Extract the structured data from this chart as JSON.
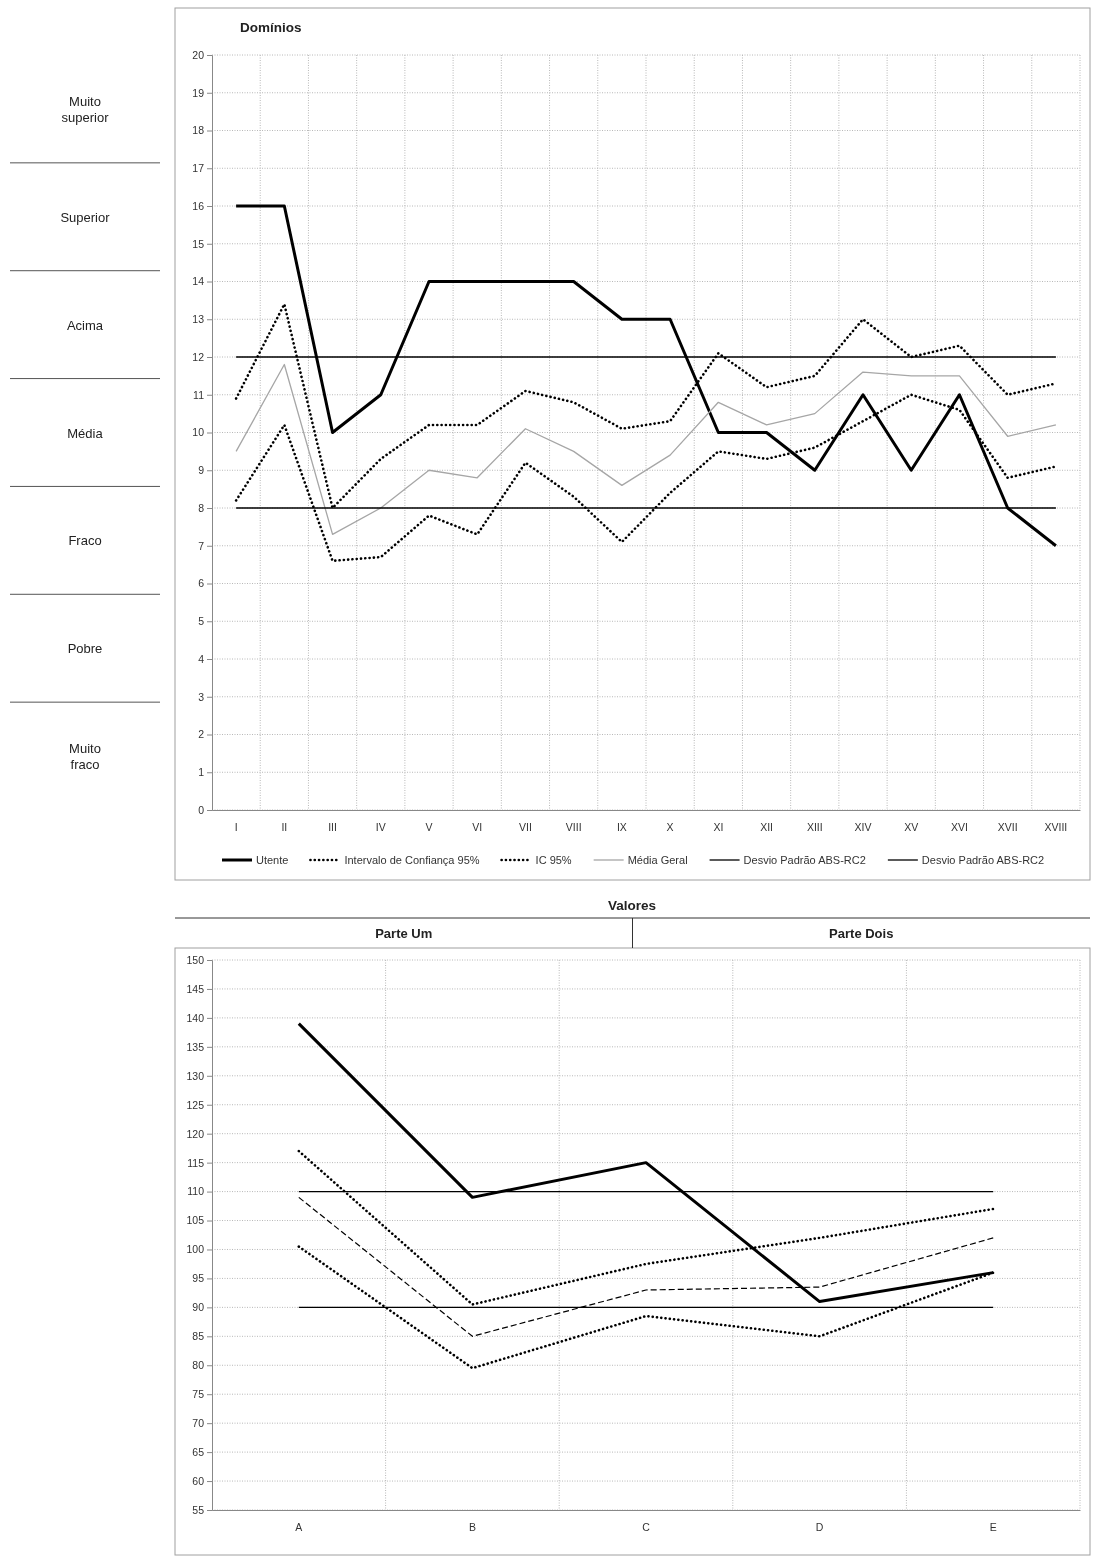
{
  "chart_data": [
    {
      "type": "line",
      "title": "Domínios",
      "categories": [
        "I",
        "II",
        "III",
        "IV",
        "V",
        "VI",
        "VII",
        "VIII",
        "IX",
        "X",
        "XI",
        "XII",
        "XIII",
        "XIV",
        "XV",
        "XVI",
        "XVII",
        "XVIII"
      ],
      "ylim": [
        0,
        20
      ],
      "yticks": [
        0,
        1,
        2,
        3,
        4,
        5,
        6,
        7,
        8,
        9,
        10,
        11,
        12,
        13,
        14,
        15,
        16,
        17,
        18,
        19,
        20
      ],
      "grid": true,
      "legend": "bottom",
      "annotations": [
        "Muito superior",
        "Superior",
        "Acima",
        "Média",
        "Fraco",
        "Pobre",
        "Muito fraco"
      ],
      "series": [
        {
          "name": "Utente",
          "color": "#000000",
          "line_style": "solid",
          "values": [
            16,
            16,
            10,
            11,
            14,
            14,
            14,
            14,
            13,
            13,
            10,
            10,
            9,
            11,
            9,
            11,
            8,
            7
          ]
        },
        {
          "name": "Intervalo de Confiança 95%",
          "color": "#000000",
          "line_style": "dotted",
          "values": [
            10.9,
            13.4,
            8.0,
            9.3,
            10.2,
            10.2,
            11.1,
            10.8,
            10.1,
            10.3,
            12.1,
            11.2,
            11.5,
            13.0,
            12.0,
            12.3,
            11.0,
            11.3
          ]
        },
        {
          "name": "IC 95%",
          "color": "#000000",
          "line_style": "dotted",
          "values": [
            8.2,
            10.2,
            6.6,
            6.7,
            7.8,
            7.3,
            9.2,
            8.3,
            7.1,
            8.4,
            9.5,
            9.3,
            9.6,
            10.3,
            11.0,
            10.6,
            8.8,
            9.1
          ]
        },
        {
          "name": "Média Geral",
          "color": "#a6a6a6",
          "line_style": "solid",
          "values": [
            9.5,
            11.8,
            7.3,
            8.0,
            9.0,
            8.8,
            10.1,
            9.5,
            8.6,
            9.4,
            10.8,
            10.2,
            10.5,
            11.6,
            11.5,
            11.5,
            9.9,
            10.2
          ]
        },
        {
          "name": "Desvio Padrão ABS-RC2",
          "color": "#000000",
          "line_style": "solid",
          "values": [
            12,
            12,
            12,
            12,
            12,
            12,
            12,
            12,
            12,
            12,
            12,
            12,
            12,
            12,
            12,
            12,
            12,
            12
          ]
        },
        {
          "name": "Desvio Padrão ABS-RC2",
          "color": "#000000",
          "line_style": "solid",
          "values": [
            8,
            8,
            8,
            8,
            8,
            8,
            8,
            8,
            8,
            8,
            8,
            8,
            8,
            8,
            8,
            8,
            8,
            8
          ]
        }
      ]
    },
    {
      "type": "line",
      "title": "Valores",
      "annotations": [
        "Parte Um",
        "Parte Dois"
      ],
      "categories": [
        "A",
        "B",
        "C",
        "D",
        "E"
      ],
      "ylim": [
        55,
        150
      ],
      "yticks": [
        55,
        60,
        65,
        70,
        75,
        80,
        85,
        90,
        95,
        100,
        105,
        110,
        115,
        120,
        125,
        130,
        135,
        140,
        145,
        150
      ],
      "grid": true,
      "series": [
        {
          "color": "#000000",
          "line_style": "solid",
          "values": [
            139,
            109,
            115,
            91,
            96
          ]
        },
        {
          "color": "#000000",
          "line_style": "solid",
          "values": [
            110,
            110,
            110,
            110,
            110
          ]
        },
        {
          "color": "#000000",
          "line_style": "solid",
          "values": [
            90,
            90,
            90,
            90,
            90
          ]
        },
        {
          "color": "#000000",
          "line_style": "dotted",
          "values": [
            117,
            90.5,
            97.5,
            102,
            107
          ]
        },
        {
          "color": "#000000",
          "line_style": "dotted",
          "values": [
            100.5,
            79.5,
            88.5,
            85,
            96
          ]
        },
        {
          "color": "#000000",
          "line_style": "dashed",
          "values": [
            109,
            85,
            93,
            93.5,
            102
          ]
        }
      ]
    }
  ]
}
